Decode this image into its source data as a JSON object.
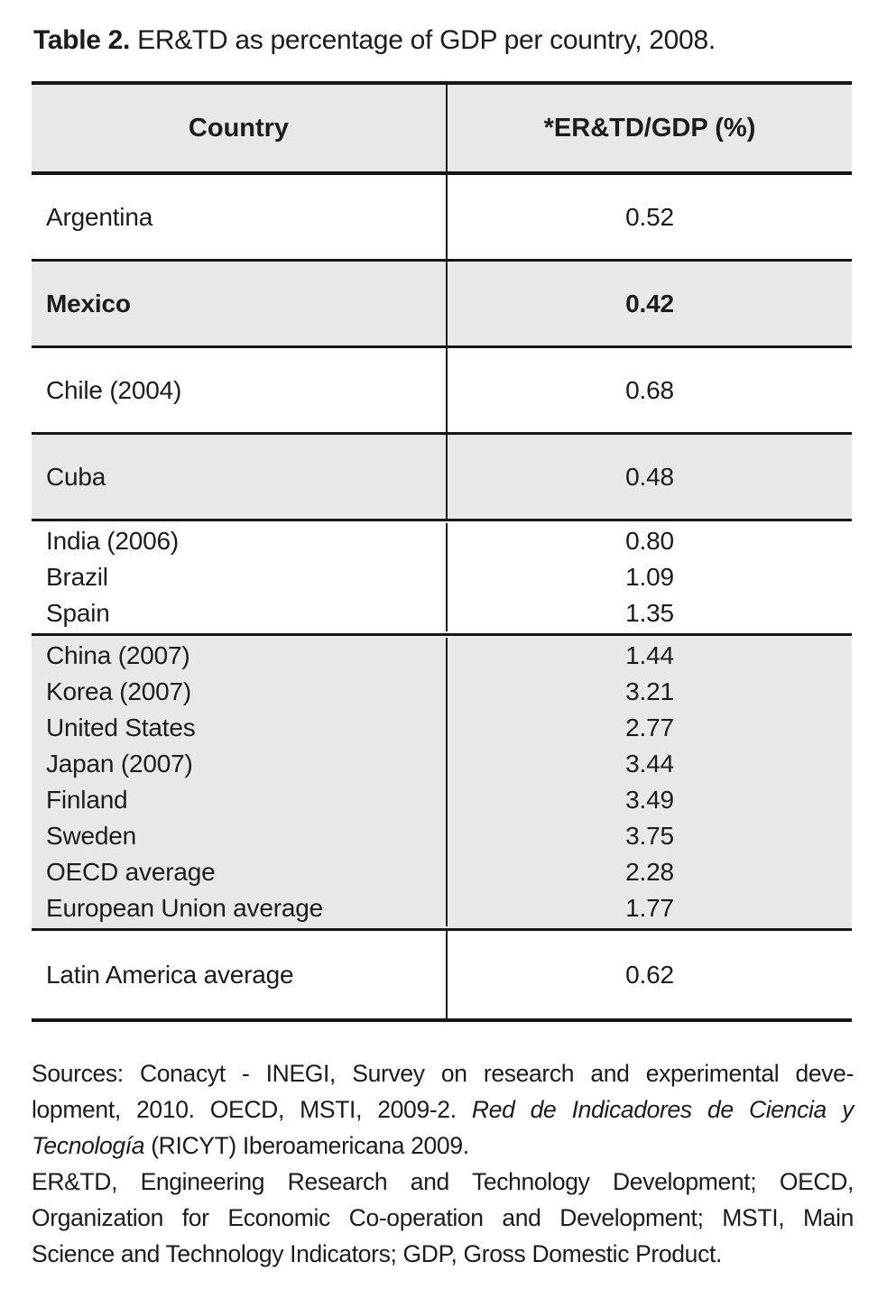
{
  "title": {
    "label": "Table 2.",
    "text": " ER&TD as percentage of GDP per country, 2008."
  },
  "table": {
    "headers": [
      "Country",
      "*ER&TD/GDP (%)"
    ],
    "rows": [
      {
        "countries": [
          "Argentina"
        ],
        "values": [
          "0.52"
        ],
        "shaded": false,
        "bold": false
      },
      {
        "countries": [
          "Mexico"
        ],
        "values": [
          "0.42"
        ],
        "shaded": true,
        "bold": true
      },
      {
        "countries": [
          "Chile (2004)"
        ],
        "values": [
          "0.68"
        ],
        "shaded": false,
        "bold": false
      },
      {
        "countries": [
          "Cuba"
        ],
        "values": [
          "0.48"
        ],
        "shaded": true,
        "bold": false
      },
      {
        "countries": [
          "India (2006)",
          "Brazil",
          "Spain"
        ],
        "values": [
          "0.80",
          "1.09",
          "1.35"
        ],
        "shaded": false,
        "bold": false
      },
      {
        "countries": [
          "China (2007)",
          "Korea (2007)",
          "United States",
          "Japan (2007)",
          "Finland",
          "Sweden",
          "OECD average",
          "European Union average"
        ],
        "values": [
          "1.44",
          "3.21",
          "2.77",
          "3.44",
          "3.49",
          "3.75",
          "2.28",
          "1.77"
        ],
        "shaded": true,
        "bold": false
      },
      {
        "countries": [
          "Latin America average"
        ],
        "values": [
          "0.62"
        ],
        "shaded": false,
        "bold": false
      }
    ]
  },
  "footnotes": {
    "paragraphs": [
      {
        "lines": [
          {
            "justify": true,
            "segments": [
              {
                "text": "Sources: Conacyt - INEGI, Survey on research and experimental deve-"
              }
            ]
          },
          {
            "justify": true,
            "segments": [
              {
                "text": "lopment, 2010. OECD, MSTI, 2009-2. "
              },
              {
                "text": "Red de Indicadores de Ciencia y",
                "italic": true
              }
            ]
          },
          {
            "justify": false,
            "segments": [
              {
                "text": "Tecnología",
                "italic": true
              },
              {
                "text": " (RICYT) Iberoamericana 2009."
              }
            ]
          }
        ]
      },
      {
        "lines": [
          {
            "justify": true,
            "segments": [
              {
                "text": "ER&TD, Engineering Research and Technology Development; OECD,"
              }
            ]
          },
          {
            "justify": true,
            "segments": [
              {
                "text": "Organization for Economic Co-operation and Development; MSTI, Main"
              }
            ]
          },
          {
            "justify": false,
            "segments": [
              {
                "text": "Science and Technology Indicators; GDP, Gross Domestic Product."
              }
            ]
          }
        ]
      }
    ]
  },
  "colors": {
    "shaded_row_bg": "#e8e8e9",
    "border": "#161616",
    "text": "#1c1c1c"
  }
}
